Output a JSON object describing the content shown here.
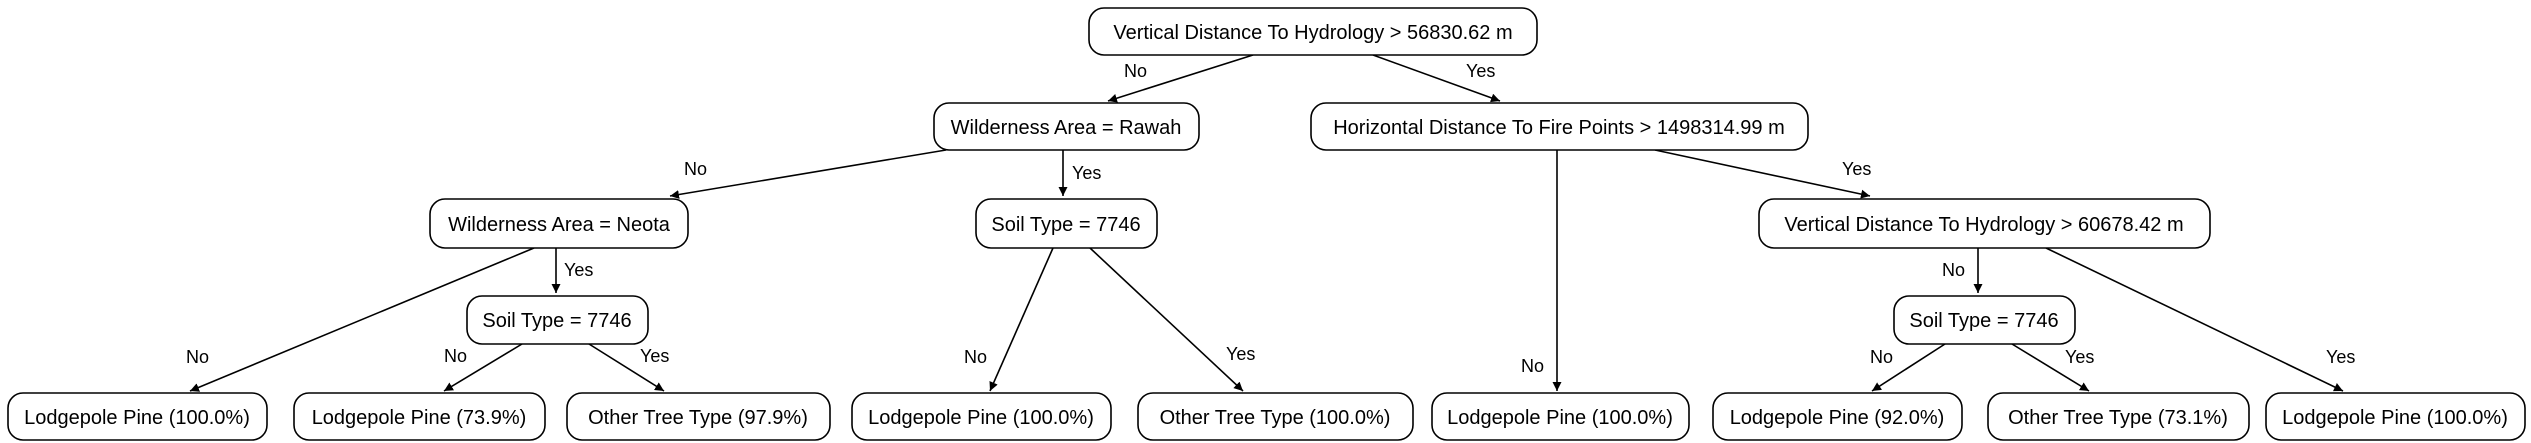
{
  "nodes": {
    "root": "Vertical Distance To Hydrology > 56830.62 m",
    "wilderness_rawah": "Wilderness Area = Rawah",
    "horizontal_fire": "Horizontal Distance To Fire Points > 1498314.99 m",
    "wilderness_neota": "Wilderness Area = Neota",
    "soil_7746_mid": "Soil Type = 7746",
    "vertical_60678": "Vertical Distance To Hydrology > 60678.42 m",
    "soil_7746_left": "Soil Type = 7746",
    "soil_7746_right": "Soil Type = 7746",
    "leaf_1": "Lodgepole Pine (100.0%)",
    "leaf_2": "Lodgepole Pine (73.9%)",
    "leaf_3": "Other Tree Type (97.9%)",
    "leaf_4": "Lodgepole Pine (100.0%)",
    "leaf_5": "Other Tree Type (100.0%)",
    "leaf_6": "Lodgepole Pine (100.0%)",
    "leaf_7": "Lodgepole Pine (92.0%)",
    "leaf_8": "Other Tree Type (73.1%)",
    "leaf_9": "Lodgepole Pine (100.0%)"
  },
  "edges": {
    "root_no": "No",
    "root_yes": "Yes",
    "rawah_no": "No",
    "rawah_yes": "Yes",
    "fire_no": "No",
    "fire_yes": "Yes",
    "neota_no": "No",
    "neota_yes": "Yes",
    "soil_left_no": "No",
    "soil_left_yes": "Yes",
    "soil_mid_no": "No",
    "soil_mid_yes": "Yes",
    "vertical_no": "No",
    "vertical_yes": "Yes",
    "soil_right_no": "No",
    "soil_right_yes": "Yes"
  }
}
